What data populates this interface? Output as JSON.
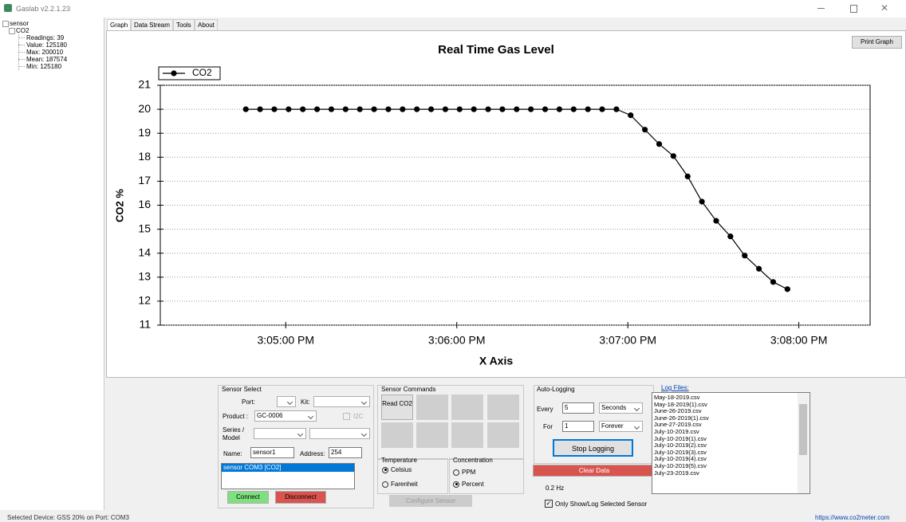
{
  "window": {
    "title": "Gaslab v2.2.1.23"
  },
  "tree": {
    "root": "sensor",
    "child": "CO2",
    "items": [
      "Readings: 39",
      "Value: 125180",
      "Max: 200010",
      "Mean: 187574",
      "Min: 125180"
    ]
  },
  "tabs": [
    "Graph",
    "Data Stream",
    "Tools",
    "About"
  ],
  "print_button": "Print Graph",
  "chart_data": {
    "type": "line",
    "title": "Real Time Gas Level",
    "x_label": "X Axis",
    "y_label": "CO2 %",
    "x": [
      "3:04:46 PM",
      "3:04:51 PM",
      "3:04:56 PM",
      "3:05:01 PM",
      "3:05:06 PM",
      "3:05:11 PM",
      "3:05:16 PM",
      "3:05:21 PM",
      "3:05:26 PM",
      "3:05:31 PM",
      "3:05:36 PM",
      "3:05:41 PM",
      "3:05:46 PM",
      "3:05:51 PM",
      "3:05:56 PM",
      "3:06:01 PM",
      "3:06:06 PM",
      "3:06:11 PM",
      "3:06:16 PM",
      "3:06:21 PM",
      "3:06:26 PM",
      "3:06:31 PM",
      "3:06:36 PM",
      "3:06:41 PM",
      "3:06:46 PM",
      "3:06:51 PM",
      "3:06:56 PM",
      "3:07:01 PM",
      "3:07:06 PM",
      "3:07:11 PM",
      "3:07:16 PM",
      "3:07:21 PM",
      "3:07:26 PM",
      "3:07:31 PM",
      "3:07:36 PM",
      "3:07:41 PM",
      "3:07:46 PM",
      "3:07:51 PM",
      "3:07:56 PM"
    ],
    "series": [
      {
        "name": "CO2",
        "color": "#000000",
        "values": [
          20,
          20,
          20,
          20,
          20,
          20,
          20,
          20,
          20,
          20,
          20,
          20,
          20,
          20,
          20,
          20,
          20,
          20,
          20,
          20,
          20,
          20,
          20,
          20,
          20,
          20,
          20,
          19.75,
          19.15,
          18.55,
          18.05,
          17.2,
          16.15,
          15.35,
          14.7,
          13.9,
          13.35,
          12.8,
          12.5
        ]
      }
    ],
    "xlim": [
      "3:04:16 PM",
      "3:08:25 PM"
    ],
    "xticks": [
      "3:05:00 PM",
      "3:06:00 PM",
      "3:07:00 PM",
      "3:08:00 PM"
    ],
    "ylim": [
      11,
      21
    ],
    "yticks": [
      11,
      12,
      13,
      14,
      15,
      16,
      17,
      18,
      19,
      20,
      21
    ],
    "grid": true,
    "legend": "upper left"
  },
  "sensor_select": {
    "title": "Sensor Select",
    "port_label": "Port:",
    "kit_label": "Kit:",
    "product_label": "Product :",
    "product_value": "GC-0006",
    "i2c": "I2C",
    "series_label": "Series / Model",
    "name_label": "Name:",
    "name_value": "sensor1",
    "address_label": "Address:",
    "address_value": "254",
    "list_item": "sensor COM3 [CO2]",
    "connect": "Connect",
    "disconnect": "Disconnect"
  },
  "sensor_commands": {
    "title": "Sensor Commands",
    "read": "Read CO2"
  },
  "temperature": {
    "title": "Temperature",
    "options": [
      "Celsius",
      "Farenheit"
    ]
  },
  "concentration": {
    "title": "Concentration",
    "options": [
      "PPM",
      "Percent"
    ]
  },
  "configure": "Configure Sensor",
  "auto_logging": {
    "title": "Auto-Logging",
    "every_label": "Every",
    "every_value": "5",
    "every_unit": "Seconds",
    "for_label": "For",
    "for_value": "1",
    "for_unit": "Forever",
    "stop": "Stop Logging",
    "clear": "Clear Data",
    "rate": "0.2 Hz",
    "only_show": "Only Show/Log Selected Sensor"
  },
  "log_files": {
    "title": "Log Files:",
    "files": [
      "May-18-2019.csv",
      "May-18-2019(1).csv",
      "June-26-2019.csv",
      "June-26-2019(1).csv",
      "June-27-2019.csv",
      "July-10-2019.csv",
      "July-10-2019(1).csv",
      "July-10-2019(2).csv",
      "July-10-2019(3).csv",
      "July-10-2019(4).csv",
      "July-10-2019(5).csv",
      "July-23-2019.csv"
    ]
  },
  "status": {
    "device": "Selected Device: GSS 20% on Port: COM3",
    "link": "https://www.co2meter.com"
  }
}
